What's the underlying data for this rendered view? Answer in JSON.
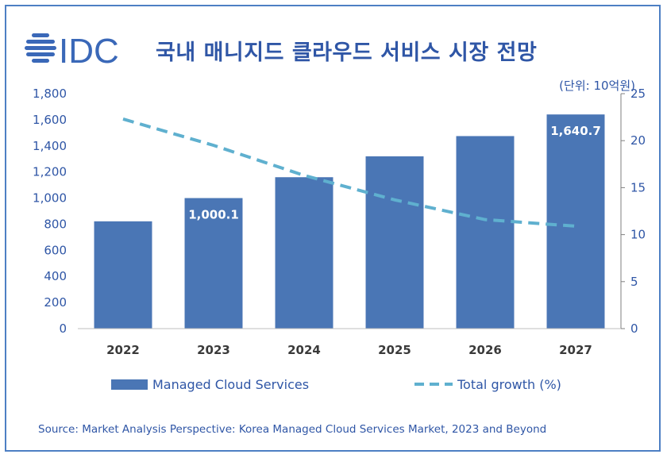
{
  "header": {
    "logo_text": "IDC",
    "title": "국내 매니지드 클라우드 서비스 시장 전망",
    "unit_label": "(단위: 10억원)"
  },
  "colors": {
    "bar": "#4a76b5",
    "line": "#5fb0cf",
    "text": "#2f56a6",
    "logo": "#3a68b8"
  },
  "chart_data": {
    "type": "bar",
    "categories": [
      "2022",
      "2023",
      "2024",
      "2025",
      "2026",
      "2027"
    ],
    "series": [
      {
        "name": "Managed Cloud Services",
        "type": "bar",
        "axis": "left",
        "values": [
          822,
          1000.1,
          1160,
          1320,
          1475,
          1640.7
        ]
      },
      {
        "name": "Total growth (%)",
        "type": "line",
        "style": "dashed",
        "axis": "right",
        "values": [
          22.3,
          19.5,
          16.3,
          13.7,
          11.6,
          10.9
        ]
      }
    ],
    "data_labels": [
      {
        "index": 1,
        "text": "1,000.1"
      },
      {
        "index": 5,
        "text": "1,640.7"
      }
    ],
    "y_left": {
      "min": 0,
      "max": 1800,
      "step": 200,
      "tick_labels": [
        "0",
        "200",
        "400",
        "600",
        "800",
        "1,000",
        "1,200",
        "1,400",
        "1,600",
        "1,800"
      ]
    },
    "y_right": {
      "min": 0,
      "max": 25,
      "step": 5,
      "tick_labels": [
        "0",
        "5",
        "10",
        "15",
        "20",
        "25"
      ]
    },
    "legend": {
      "placement": "bottom",
      "items": [
        "Managed Cloud Services",
        "Total growth (%)"
      ]
    },
    "grid": false
  },
  "source": "Source: Market Analysis Perspective: Korea Managed Cloud Services Market, 2023 and Beyond"
}
